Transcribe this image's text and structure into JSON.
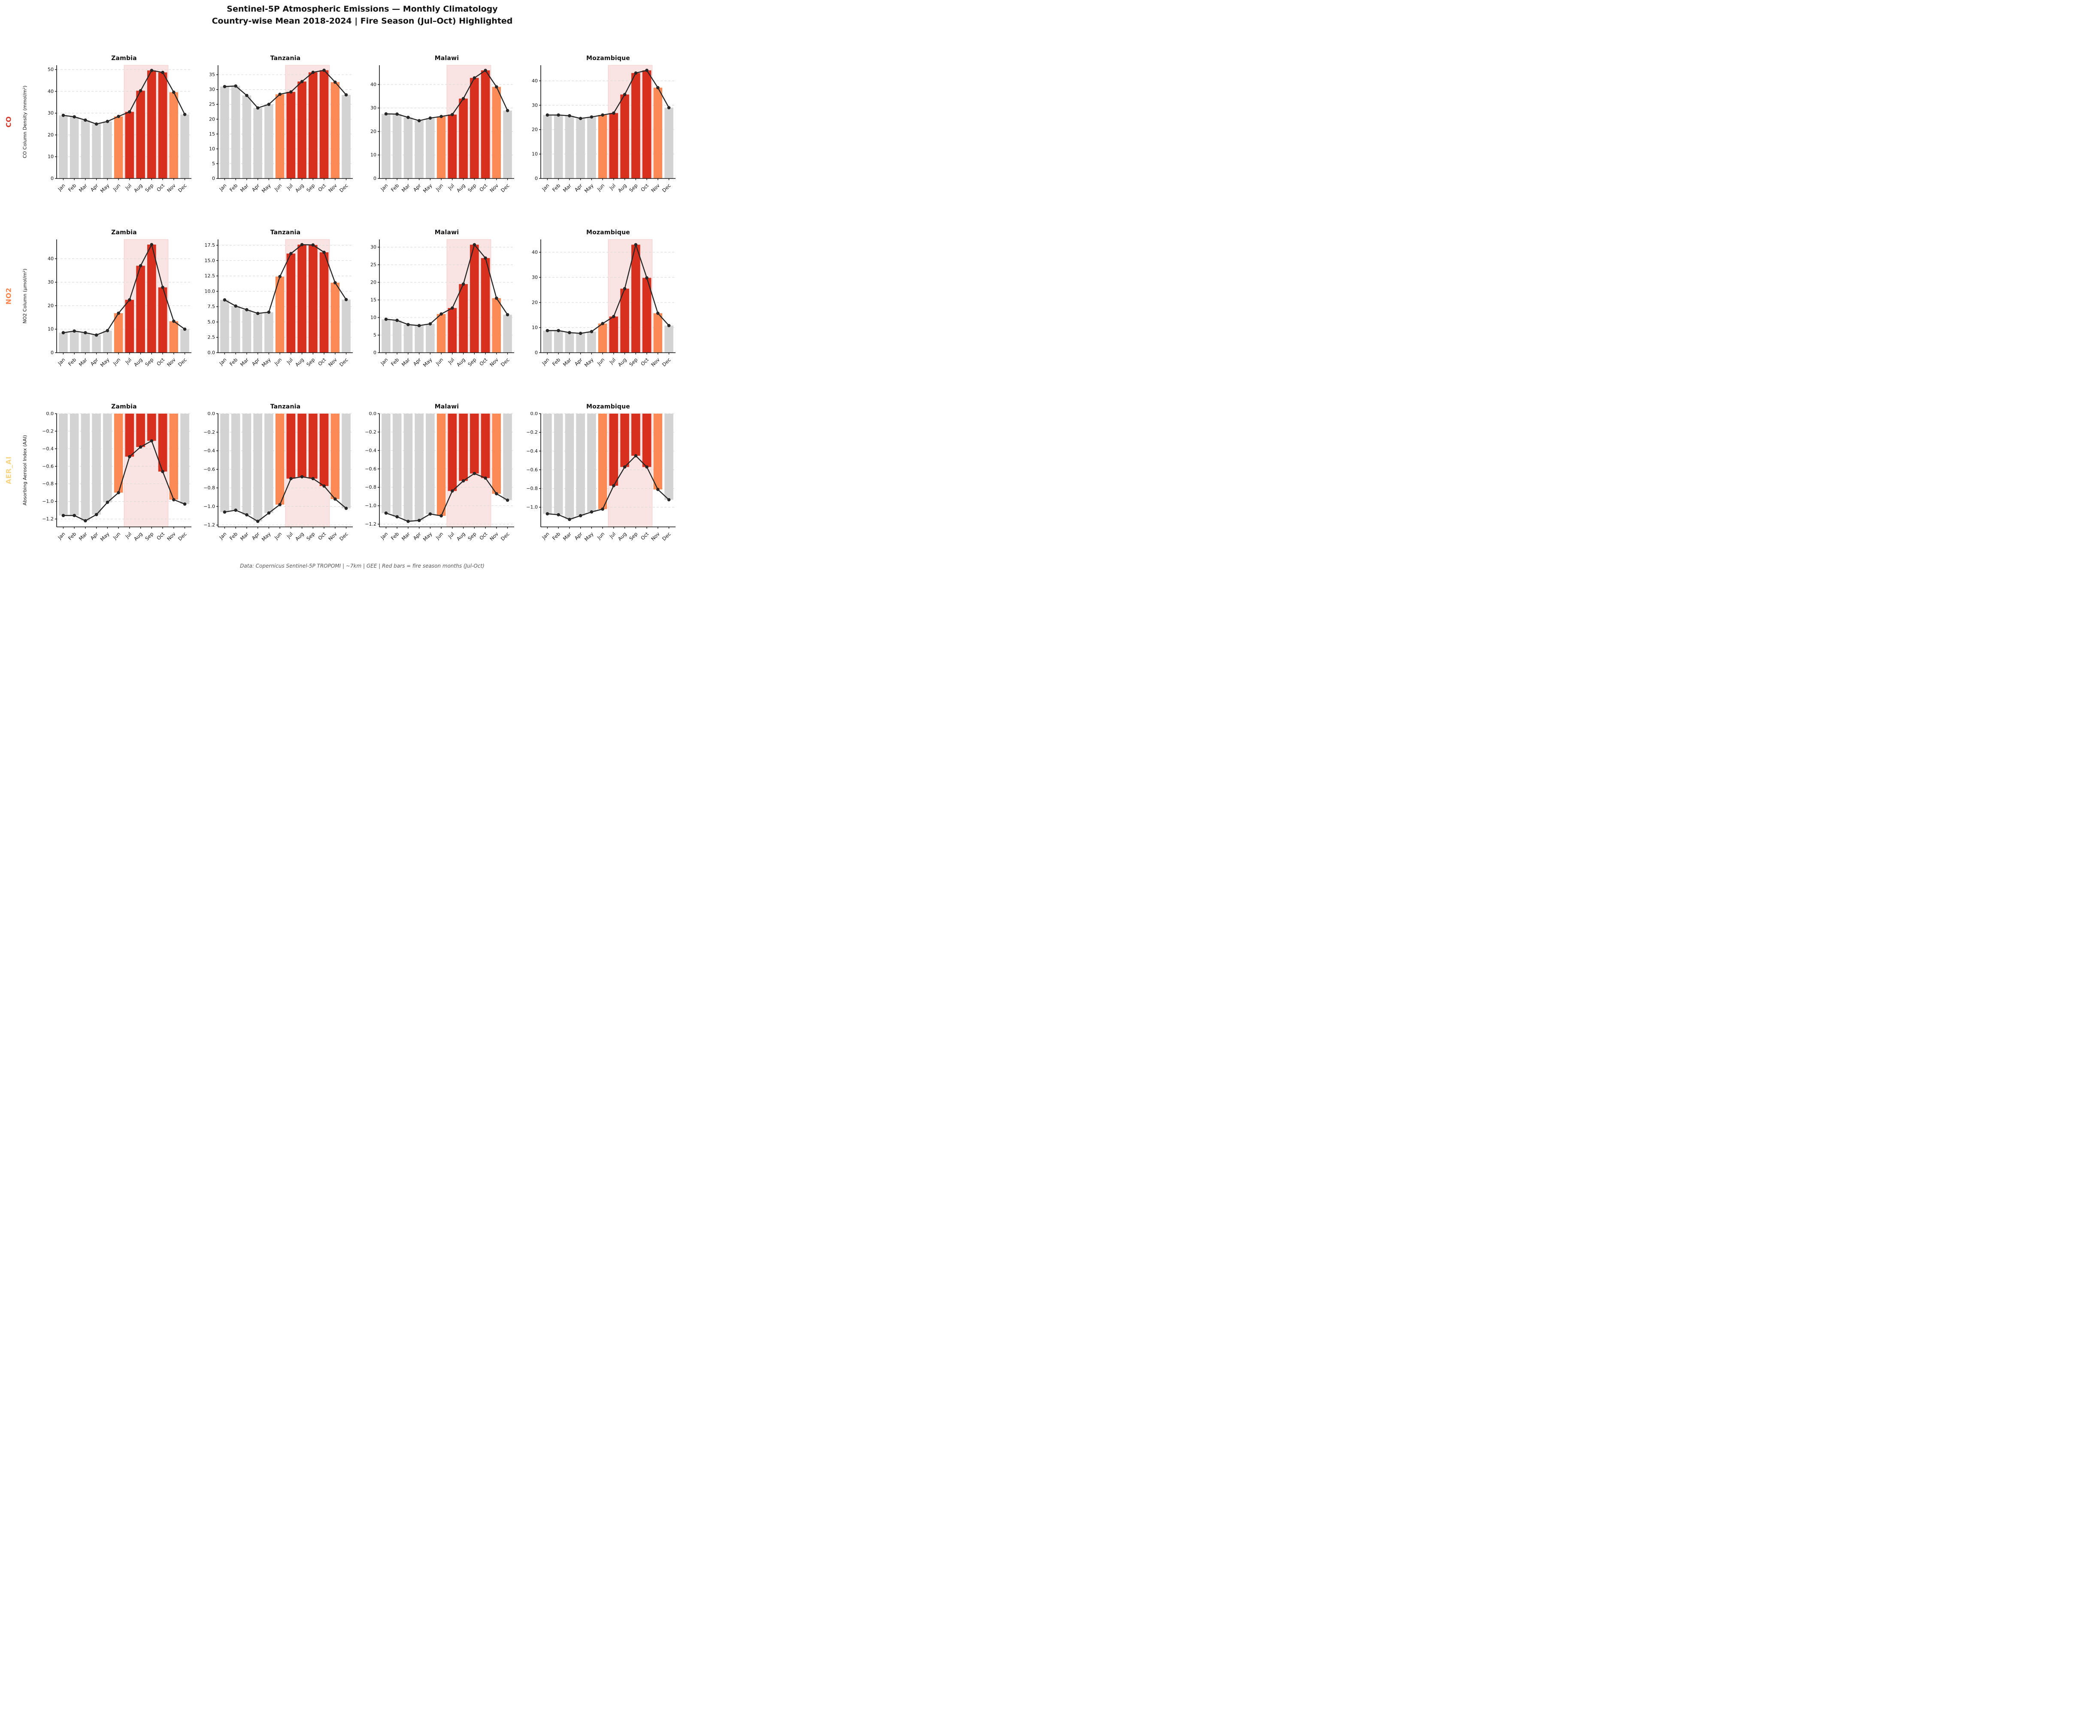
{
  "header": {
    "title_line1": "Sentinel-5P Atmospheric Emissions — Monthly Climatology",
    "title_line2": "Country-wise Mean 2018-2024 | Fire Season (Jul–Oct) Highlighted"
  },
  "footer": {
    "text": "Data: Copernicus Sentinel-5P TROPOMI | ~7km | GEE | Red bars = fire season months (Jul-Oct)"
  },
  "months": [
    "Jan",
    "Feb",
    "Mar",
    "Apr",
    "May",
    "Jun",
    "Jul",
    "Aug",
    "Sep",
    "Oct",
    "Nov",
    "Dec"
  ],
  "rows": [
    {
      "id": "co",
      "label": "CO",
      "label_color": "#d6392b",
      "ylabel": "CO Column Density (mmol/m²)"
    },
    {
      "id": "no2",
      "label": "NO2",
      "label_color": "#f9854e",
      "ylabel": "NO2 Column (µmol/m²)"
    },
    {
      "id": "aer",
      "label": "AER_AI",
      "label_color": "#f8d584",
      "ylabel": "Absorbing Aerosol Index (AAI)"
    }
  ],
  "fire_season": {
    "months": [
      "Jul",
      "Aug",
      "Sep",
      "Oct"
    ],
    "shoulder_months": [
      "Jun",
      "Nov"
    ],
    "span_band_index": [
      5.5,
      9.5
    ]
  },
  "bar_color_by_month": [
    "gray",
    "gray",
    "gray",
    "gray",
    "gray",
    "orange",
    "red",
    "red",
    "red",
    "red",
    "orange",
    "gray"
  ],
  "colors": {
    "bar_gray": "#d3d3d3",
    "bar_orange": "#fb8a57",
    "bar_red": "#d7301f",
    "fire_shade_fill": "rgba(215,48,39,0.13)",
    "fire_shade_edge": "rgba(215,48,39,0.18)",
    "line": "#262626",
    "grid": "#d8d8d8",
    "axis": "#111111",
    "tick_text": "#111111"
  },
  "chart_data": [
    {
      "type": "bar+line",
      "row": "CO",
      "country": "Zambia",
      "values": [
        29.0,
        28.3,
        26.8,
        25.0,
        26.2,
        28.5,
        30.6,
        40.3,
        49.6,
        48.7,
        39.6,
        29.4
      ],
      "ylim": [
        0,
        52
      ],
      "yticks": [
        0,
        10,
        20,
        30,
        40,
        50
      ],
      "tick_decimals": 0
    },
    {
      "type": "bar+line",
      "row": "CO",
      "country": "Tanzania",
      "values": [
        31.0,
        31.2,
        28.0,
        23.8,
        25.0,
        28.4,
        29.2,
        32.7,
        35.8,
        36.5,
        32.5,
        28.2
      ],
      "ylim": [
        0,
        38.2
      ],
      "yticks": [
        0,
        5,
        10,
        15,
        20,
        25,
        30,
        35
      ],
      "tick_decimals": 0
    },
    {
      "type": "bar+line",
      "row": "CO",
      "country": "Malawi",
      "values": [
        27.5,
        27.4,
        26.0,
        24.6,
        25.7,
        26.4,
        27.2,
        34.0,
        42.8,
        46.0,
        39.0,
        28.9
      ],
      "ylim": [
        0,
        48.2
      ],
      "yticks": [
        0,
        10,
        20,
        30,
        40
      ],
      "tick_decimals": 0
    },
    {
      "type": "bar+line",
      "row": "CO",
      "country": "Mozambique",
      "values": [
        26.0,
        26.0,
        25.7,
        24.6,
        25.2,
        26.0,
        26.8,
        34.4,
        43.2,
        44.3,
        37.2,
        29.0
      ],
      "ylim": [
        0,
        46.4
      ],
      "yticks": [
        0,
        10,
        20,
        30,
        40
      ],
      "tick_decimals": 0
    },
    {
      "type": "bar+line",
      "row": "NO2",
      "country": "Zambia",
      "values": [
        8.5,
        9.2,
        8.5,
        7.5,
        9.4,
        16.8,
        22.5,
        37.0,
        46.0,
        27.8,
        13.4,
        10.0
      ],
      "ylim": [
        0,
        48.2
      ],
      "yticks": [
        0,
        10,
        20,
        30,
        40
      ],
      "tick_decimals": 0
    },
    {
      "type": "bar+line",
      "row": "NO2",
      "country": "Tanzania",
      "values": [
        8.6,
        7.6,
        7.0,
        6.4,
        6.6,
        12.4,
        16.15,
        17.6,
        17.55,
        16.35,
        11.4,
        8.65
      ],
      "ylim": [
        0,
        18.45
      ],
      "yticks": [
        0,
        2.5,
        5,
        7.5,
        10,
        12.5,
        15,
        17.5
      ],
      "tick_decimals": 1
    },
    {
      "type": "bar+line",
      "row": "NO2",
      "country": "Malawi",
      "values": [
        9.5,
        9.2,
        8.0,
        7.7,
        8.2,
        11.0,
        12.7,
        19.5,
        30.7,
        26.9,
        15.5,
        10.8
      ],
      "ylim": [
        0,
        32.2
      ],
      "yticks": [
        0,
        5,
        10,
        15,
        20,
        25,
        30
      ],
      "tick_decimals": 0
    },
    {
      "type": "bar+line",
      "row": "NO2",
      "country": "Mozambique",
      "values": [
        8.8,
        8.8,
        8.0,
        7.7,
        8.4,
        11.6,
        14.4,
        25.5,
        43.0,
        29.8,
        15.7,
        10.8
      ],
      "ylim": [
        0,
        45.1
      ],
      "yticks": [
        0,
        10,
        20,
        30,
        40
      ],
      "tick_decimals": 0
    },
    {
      "type": "bar+line",
      "row": "AER_AI",
      "country": "Zambia",
      "values": [
        -1.16,
        -1.16,
        -1.22,
        -1.15,
        -1.01,
        -0.9,
        -0.49,
        -0.38,
        -0.31,
        -0.66,
        -0.98,
        -1.03
      ],
      "ylim": [
        -1.29,
        0
      ],
      "yticks": [
        0,
        -0.2,
        -0.4,
        -0.6,
        -0.8,
        -1.0,
        -1.2
      ],
      "tick_decimals": 1
    },
    {
      "type": "bar+line",
      "row": "AER_AI",
      "country": "Tanzania",
      "values": [
        -1.06,
        -1.04,
        -1.09,
        -1.16,
        -1.07,
        -0.98,
        -0.7,
        -0.68,
        -0.7,
        -0.78,
        -0.92,
        -1.02
      ],
      "ylim": [
        -1.22,
        0
      ],
      "yticks": [
        0,
        -0.2,
        -0.4,
        -0.6,
        -0.8,
        -1.0,
        -1.2
      ],
      "tick_decimals": 1
    },
    {
      "type": "bar+line",
      "row": "AER_AI",
      "country": "Malawi",
      "values": [
        -1.08,
        -1.12,
        -1.17,
        -1.16,
        -1.09,
        -1.11,
        -0.84,
        -0.73,
        -0.65,
        -0.7,
        -0.87,
        -0.94
      ],
      "ylim": [
        -1.23,
        0
      ],
      "yticks": [
        0,
        -0.2,
        -0.4,
        -0.6,
        -0.8,
        -1.0,
        -1.2
      ],
      "tick_decimals": 1
    },
    {
      "type": "bar+line",
      "row": "AER_AI",
      "country": "Mozambique",
      "values": [
        -1.07,
        -1.08,
        -1.13,
        -1.09,
        -1.05,
        -1.02,
        -0.77,
        -0.57,
        -0.45,
        -0.57,
        -0.81,
        -0.92
      ],
      "ylim": [
        -1.21,
        0
      ],
      "yticks": [
        0,
        -0.2,
        -0.4,
        -0.6,
        -0.8,
        -1.0
      ],
      "tick_decimals": 1
    }
  ]
}
